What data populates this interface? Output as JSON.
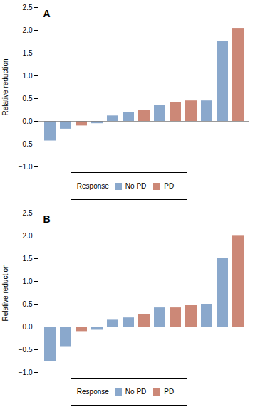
{
  "chart_data": [
    {
      "type": "bar",
      "title": "A",
      "categories": [
        null,
        null,
        null,
        null,
        null,
        null,
        null,
        null,
        null,
        null,
        null,
        null,
        null
      ],
      "series": [
        {
          "name": "No PD",
          "color": "#8aa8cc",
          "values": [
            -0.43,
            -0.17,
            null,
            -0.05,
            0.12,
            0.2,
            null,
            0.35,
            null,
            null,
            0.45,
            1.75,
            null
          ]
        },
        {
          "name": "PD",
          "color": "#cc8877",
          "values": [
            null,
            null,
            -0.1,
            null,
            null,
            null,
            0.25,
            null,
            0.42,
            0.45,
            null,
            null,
            2.03
          ]
        }
      ],
      "stacked": true,
      "ylabel": "Relative reduction",
      "ylim": [
        -1.0,
        2.5
      ],
      "yticks": [
        {
          "value": -1.0,
          "label": "−1.0"
        },
        {
          "value": -0.5,
          "label": "−0.5"
        },
        {
          "value": 0.0,
          "label": "0.0"
        },
        0.5,
        {
          "value": 1.0,
          "label": "1.0"
        },
        1.5,
        {
          "value": 2.0,
          "label": "2.0"
        },
        2.5
      ],
      "grid": false,
      "tick_labels": "y",
      "legend": "bottom",
      "legend_title": "Response"
    },
    {
      "type": "bar",
      "title": "B",
      "categories": [
        null,
        null,
        null,
        null,
        null,
        null,
        null,
        null,
        null,
        null,
        null,
        null,
        null
      ],
      "series": [
        {
          "name": "No PD",
          "color": "#8aa8cc",
          "values": [
            -0.75,
            -0.43,
            null,
            -0.07,
            0.15,
            0.2,
            null,
            0.42,
            null,
            null,
            0.5,
            1.5,
            null
          ]
        },
        {
          "name": "PD",
          "color": "#cc8877",
          "values": [
            null,
            null,
            -0.1,
            null,
            null,
            null,
            0.27,
            null,
            0.42,
            0.48,
            null,
            null,
            2.01
          ]
        }
      ],
      "stacked": true,
      "ylabel": "Relative reduction",
      "ylim": [
        -1.0,
        2.5
      ],
      "yticks": [
        {
          "value": -1.0,
          "label": "−1.0"
        },
        {
          "value": -0.5,
          "label": "−0.5"
        },
        {
          "value": 0.0,
          "label": "0.0"
        },
        0.5,
        {
          "value": 1.0,
          "label": "1.0"
        },
        1.5,
        {
          "value": 2.0,
          "label": "2.0"
        },
        2.5
      ],
      "grid": false,
      "tick_labels": "y",
      "legend": "bottom",
      "legend_title": "Response"
    }
  ]
}
